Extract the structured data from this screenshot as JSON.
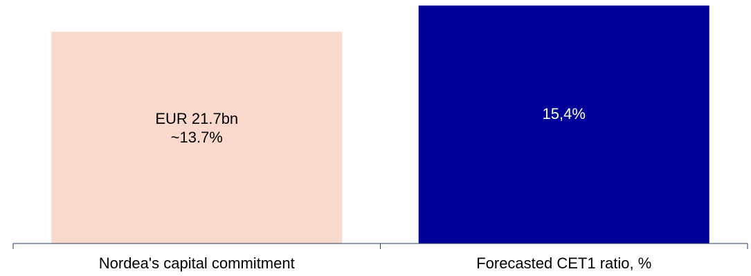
{
  "chart_data": {
    "type": "bar",
    "categories": [
      "Nordea's capital commitment",
      "Forecasted CET1 ratio, %"
    ],
    "values": [
      13.7,
      15.4
    ],
    "data_labels": [
      [
        "EUR 21.7bn",
        "~13.7%"
      ],
      [
        "15,4%"
      ]
    ],
    "bar_colors": [
      "#f9d9cb",
      "#000099"
    ],
    "label_colors": [
      "#000000",
      "#ffffff"
    ],
    "title": "",
    "xlabel": "",
    "ylabel": "",
    "ylim": [
      0,
      15.4
    ],
    "grid": false,
    "legend": "none",
    "axis_color": "#1f3864"
  }
}
